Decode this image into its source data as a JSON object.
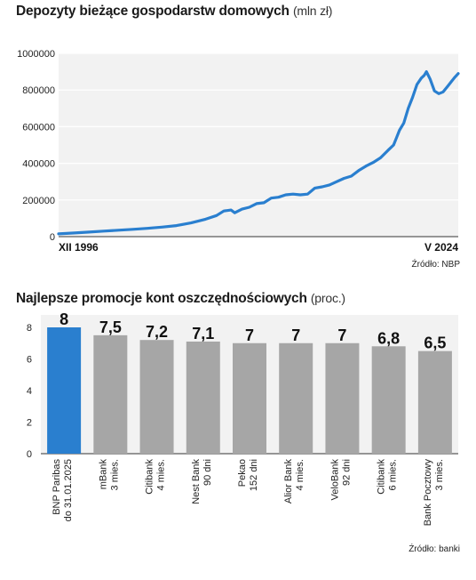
{
  "line_chart": {
    "title": "Depozyty bieżące gospodarstw domowych",
    "unit": "(mln zł)",
    "source": "Źródło: NBP"
  },
  "bar_chart": {
    "title": "Najlepsze promocje kont oszczędnościowych",
    "unit": "(proc.)",
    "source": "Źródło: banki"
  },
  "colors": {
    "line": "#2a7fcf",
    "bar_highlight": "#2a7fcf",
    "bar": "#a6a6a6",
    "plot_bg": "#f2f2f2"
  },
  "chart_data": [
    {
      "type": "line",
      "title": "Depozyty bieżące gospodarstw domowych",
      "ylabel": "(mln zł)",
      "ylim": [
        0,
        1000000
      ],
      "yticks": [
        0,
        200000,
        400000,
        600000,
        800000,
        1000000
      ],
      "ytick_labels": [
        "0",
        "200000",
        "400000",
        "600000",
        "800000",
        "1000000"
      ],
      "xlim": [
        1996.917,
        2024.333
      ],
      "xtick_labels": [
        "XII 1996",
        "V 2024"
      ],
      "grid": "horizontal",
      "series": [
        {
          "x": [
            1996.917,
            1998.0,
            1999.0,
            2000.0,
            2001.0,
            2002.0,
            2003.0,
            2004.0,
            2005.0,
            2006.0,
            2007.0,
            2007.75,
            2008.25,
            2008.75,
            2009.0,
            2009.5,
            2010.0,
            2010.5,
            2011.0,
            2011.5,
            2012.0,
            2012.5,
            2013.0,
            2013.5,
            2014.0,
            2014.5,
            2015.0,
            2015.5,
            2016.0,
            2016.5,
            2017.0,
            2017.5,
            2018.0,
            2018.5,
            2019.0,
            2019.5,
            2019.9,
            2020.1,
            2020.3,
            2020.6,
            2020.9,
            2021.2,
            2021.5,
            2021.8,
            2022.0,
            2022.15,
            2022.4,
            2022.7,
            2023.0,
            2023.3,
            2023.6,
            2023.9,
            2024.1,
            2024.333
          ],
          "values": [
            15000,
            20000,
            25000,
            30000,
            35000,
            40000,
            45000,
            52000,
            60000,
            75000,
            95000,
            115000,
            140000,
            145000,
            130000,
            150000,
            160000,
            180000,
            185000,
            210000,
            215000,
            228000,
            232000,
            228000,
            232000,
            265000,
            272000,
            282000,
            300000,
            318000,
            330000,
            360000,
            385000,
            405000,
            430000,
            470000,
            500000,
            540000,
            580000,
            620000,
            700000,
            760000,
            830000,
            865000,
            880000,
            900000,
            860000,
            795000,
            780000,
            790000,
            820000,
            850000,
            870000,
            890000
          ]
        }
      ]
    },
    {
      "type": "bar",
      "title": "Najlepsze promocje kont oszczędnościowych",
      "ylabel": "(proc.)",
      "ylim": [
        0,
        8
      ],
      "yticks": [
        0,
        2,
        4,
        6,
        8
      ],
      "grid": "none",
      "categories": [
        [
          "BNP Paribas",
          "do 31.01.2025"
        ],
        [
          "mBank",
          "3 mies."
        ],
        [
          "Citibank",
          "4 mies."
        ],
        [
          "Nest Bank",
          "90 dni"
        ],
        [
          "Pekao",
          "152 dni"
        ],
        [
          "Alior Bank",
          "4 mies."
        ],
        [
          "VeloBank",
          "92 dni"
        ],
        [
          "Citibank",
          "6 mies."
        ],
        [
          "Bank Pocztowy",
          "3 mies."
        ]
      ],
      "values": [
        8,
        7.5,
        7.2,
        7.1,
        7,
        7,
        7,
        6.8,
        6.5
      ],
      "value_labels": [
        "8",
        "7,5",
        "7,2",
        "7,1",
        "7",
        "7",
        "7",
        "6,8",
        "6,5"
      ],
      "highlight_index": 0
    }
  ]
}
